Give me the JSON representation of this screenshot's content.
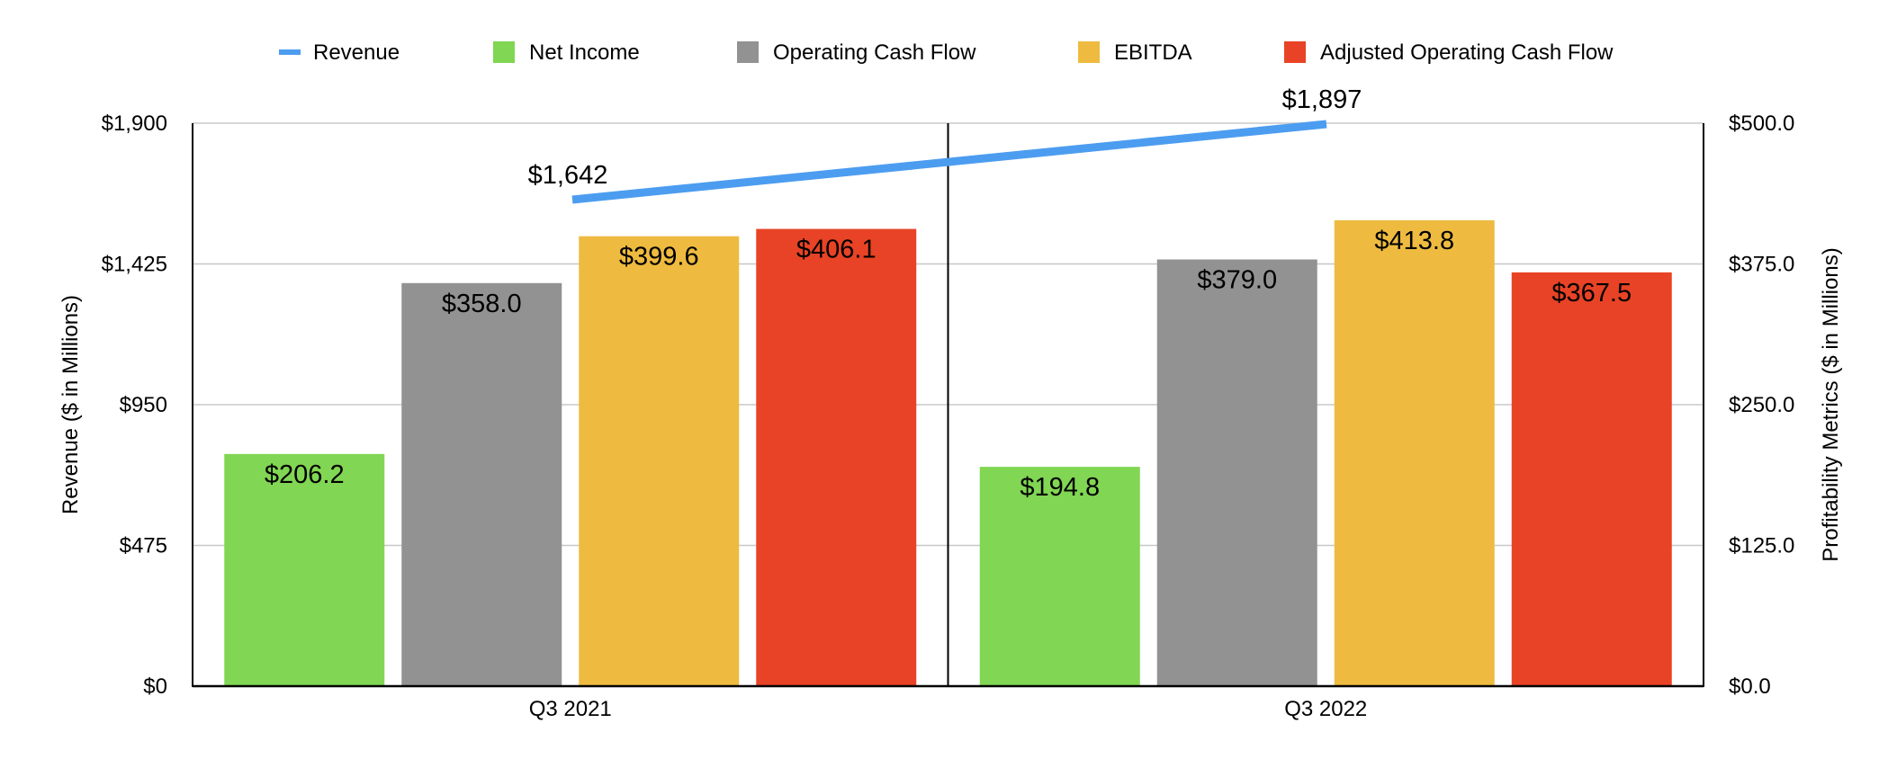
{
  "chart_data": {
    "type": "bar",
    "categories": [
      "Q3 2021",
      "Q3 2022"
    ],
    "series": [
      {
        "name": "Net Income",
        "values": [
          206.2,
          194.8
        ],
        "labels": [
          "$206.2",
          "$194.8"
        ],
        "color": "#81D653",
        "axis": "right"
      },
      {
        "name": "Operating Cash Flow",
        "values": [
          358.0,
          379.0
        ],
        "labels": [
          "$358.0",
          "$379.0"
        ],
        "color": "#929292",
        "axis": "right"
      },
      {
        "name": "EBITDA",
        "values": [
          399.6,
          413.8
        ],
        "labels": [
          "$399.6",
          "$413.8"
        ],
        "color": "#EEBB40",
        "axis": "right"
      },
      {
        "name": "Adjusted Operating Cash Flow",
        "values": [
          406.1,
          367.5
        ],
        "labels": [
          "$406.1",
          "$367.5"
        ],
        "color": "#E84326",
        "axis": "right"
      }
    ],
    "line_series": {
      "name": "Revenue",
      "type": "line",
      "values": [
        1642,
        1897
      ],
      "labels": [
        "$1,642",
        "$1,897"
      ],
      "color": "#4C9DF0",
      "axis": "left"
    },
    "legend": {
      "placement": "top",
      "order": [
        "Revenue",
        "Net Income",
        "Operating Cash Flow",
        "EBITDA",
        "Adjusted Operating Cash Flow"
      ]
    },
    "left_axis": {
      "label": "Revenue ($ in Millions)",
      "ylim": [
        0,
        1900
      ],
      "ticks": [
        0,
        475,
        950,
        1425,
        1900
      ],
      "tick_labels": [
        "$0",
        "$475",
        "$950",
        "$1,425",
        "$1,900"
      ]
    },
    "right_axis": {
      "label": "Profitability Metrics ($ in Millions)",
      "ylim": [
        0,
        500
      ],
      "ticks": [
        0,
        125,
        250,
        375,
        500
      ],
      "tick_labels": [
        "$0.0",
        "$125.0",
        "$250.0",
        "$375.0",
        "$500.0"
      ]
    },
    "xlabel": "",
    "grid": true
  }
}
